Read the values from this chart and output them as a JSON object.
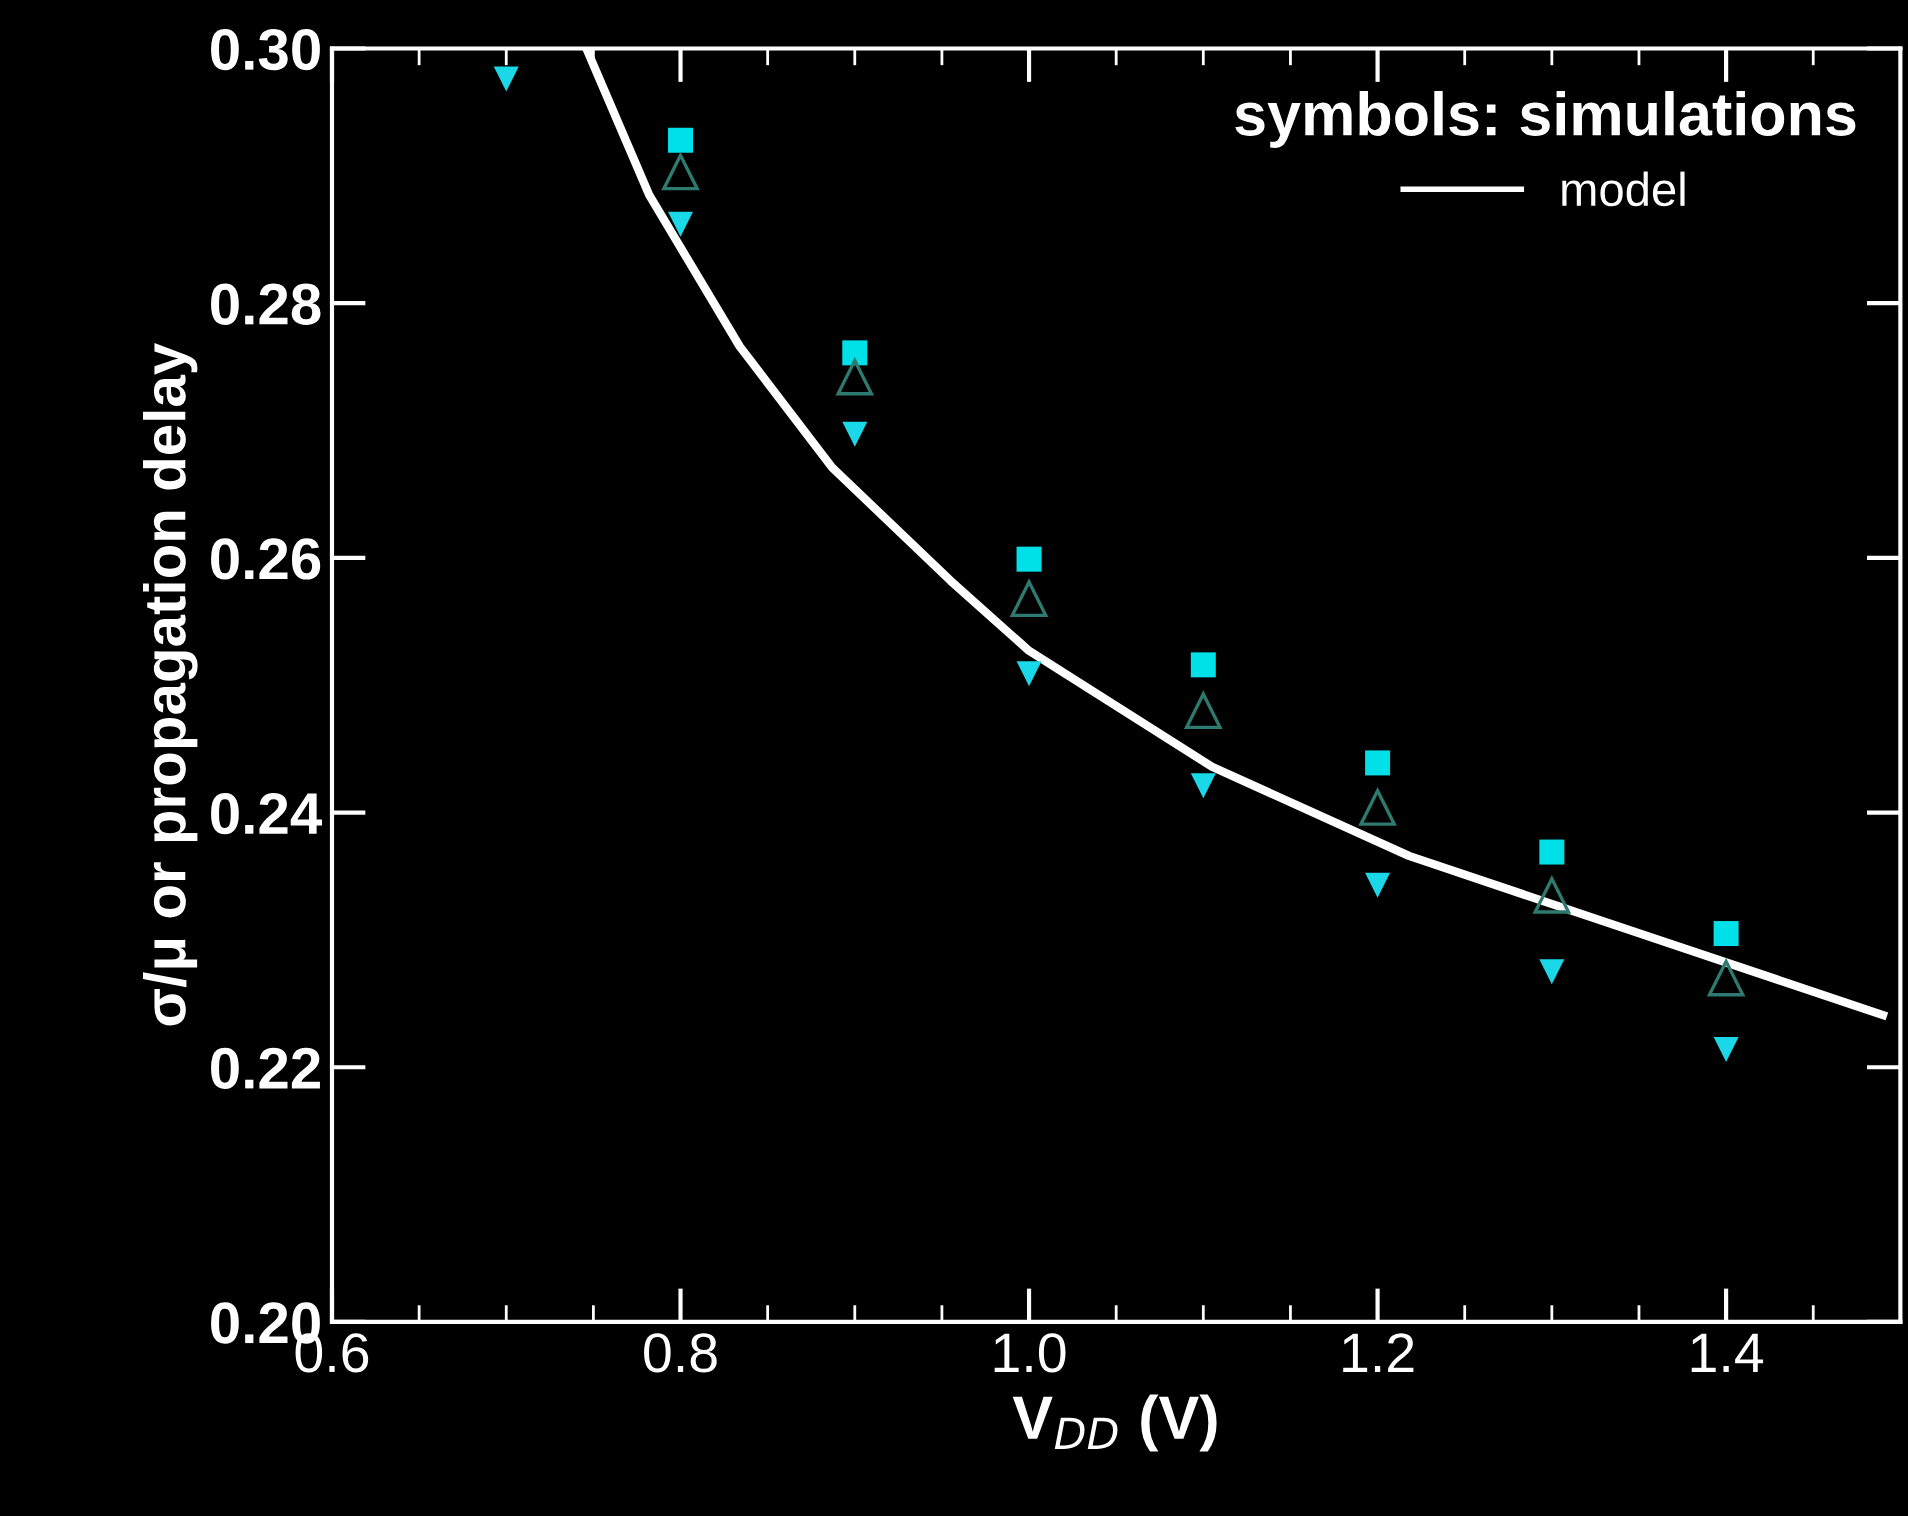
{
  "chart_data": {
    "type": "scatter",
    "xlabel": "V$_{DD}$ (V)",
    "ylabel": "σ/μ or propagation delay",
    "legend_title": "symbols: simulations",
    "legend": "top right",
    "grid": false,
    "xlim": [
      0.6,
      1.5
    ],
    "ylim": [
      0.2,
      0.3
    ],
    "xticks": [
      {
        "value": 0.6,
        "label": "0.6"
      },
      {
        "value": 0.8,
        "label": "0.8"
      },
      {
        "value": 1.0,
        "label": "1.0"
      },
      {
        "value": 1.2,
        "label": "1.2"
      },
      {
        "value": 1.4,
        "label": "1.4"
      }
    ],
    "yticks": [
      {
        "value": 0.2,
        "label": "0.20"
      },
      {
        "value": 0.22,
        "label": "0.22"
      },
      {
        "value": 0.24,
        "label": "0.24"
      },
      {
        "value": 0.26,
        "label": "0.26"
      },
      {
        "value": 0.28,
        "label": "0.28"
      },
      {
        "value": 0.3,
        "label": "0.30"
      }
    ],
    "series": [
      {
        "marker": "square",
        "color": "#00e0e8",
        "x": [
          0.8,
          0.9,
          1.0,
          1.1,
          1.2,
          1.3,
          1.4
        ],
        "values": [
          0.2928,
          0.2761,
          0.2599,
          0.2516,
          0.2439,
          0.2369,
          0.2305
        ]
      },
      {
        "marker": "triangle",
        "color": "#2f7a70",
        "x": [
          0.8,
          0.9,
          1.0,
          1.1,
          1.2,
          1.3,
          1.4
        ],
        "values": [
          0.2903,
          0.2742,
          0.2568,
          0.248,
          0.2404,
          0.2335,
          0.227
        ]
      },
      {
        "marker": "triangle_down",
        "color": "#1ad8e8",
        "x": [
          0.7,
          0.8,
          0.9,
          1.0,
          1.1,
          1.2,
          1.3,
          1.4
        ],
        "values": [
          0.2976,
          0.2862,
          0.2697,
          0.2509,
          0.2421,
          0.2343,
          0.2275,
          0.2214
        ]
      },
      {
        "type": "line",
        "name": "model",
        "color": "#ffffff",
        "line_style": "solid",
        "marker": "none",
        "x": [
          0.746,
          0.782,
          0.834,
          0.887,
          0.955,
          1.0,
          1.105,
          1.218,
          1.331,
          1.49
        ],
        "values": [
          0.3,
          0.2885,
          0.2766,
          0.2671,
          0.2582,
          0.2527,
          0.2436,
          0.2366,
          0.2314,
          0.2241
        ]
      }
    ]
  }
}
